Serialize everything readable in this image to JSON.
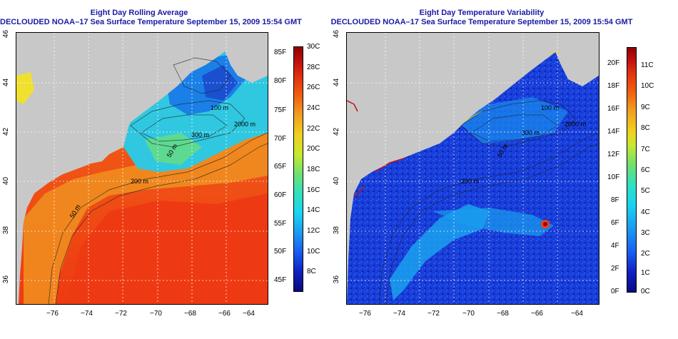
{
  "left_panel": {
    "title_line1": "Eight Day Rolling Average",
    "title_line2": "DECLOUDED NOAA–17 Sea Surface Temperature September 15, 2009 15:54 GMT",
    "x_ticks": [
      "−76",
      "−74",
      "−72",
      "−70",
      "−68",
      "−66",
      "−64"
    ],
    "y_ticks": [
      "46",
      "44",
      "42",
      "40",
      "38",
      "36"
    ],
    "contour_labels": [
      "100 m",
      "300 m",
      "50 m",
      "2000 m",
      "200 m",
      "50 m"
    ],
    "colorbar_f": [
      "85F",
      "80F",
      "75F",
      "70F",
      "65F",
      "60F",
      "55F",
      "50F",
      "45F"
    ],
    "colorbar_c": [
      "30C",
      "28C",
      "26C",
      "24C",
      "22C",
      "20C",
      "18C",
      "16C",
      "14C",
      "12C",
      "10C",
      "8C"
    ]
  },
  "right_panel": {
    "title_line1": "Eight Day Temperature Variability",
    "title_line2": "DECLOUDED NOAA–17 Sea Surface Temperature September 15, 2009 15:54 GMT",
    "x_ticks": [
      "−76",
      "−74",
      "−72",
      "−70",
      "−68",
      "−66",
      "−64"
    ],
    "y_ticks": [
      "46",
      "44",
      "42",
      "40",
      "38",
      "36"
    ],
    "contour_labels": [
      "100 m",
      "300 m",
      "50 m",
      "2000 m",
      "200 m"
    ],
    "colorbar_f": [
      "20F",
      "18F",
      "16F",
      "14F",
      "12F",
      "10F",
      "8F",
      "6F",
      "4F",
      "2F",
      "0F"
    ],
    "colorbar_c": [
      "11C",
      "10C",
      "9C",
      "8C",
      "7C",
      "6C",
      "5C",
      "4C",
      "3C",
      "2C",
      "1C",
      "0C"
    ]
  },
  "colors": {
    "title": "#1a1aa6",
    "land": "#c8c8c8",
    "warm": "#f04a1a",
    "cool": "#1a9cf0",
    "low_var": "#1a3cd8"
  }
}
